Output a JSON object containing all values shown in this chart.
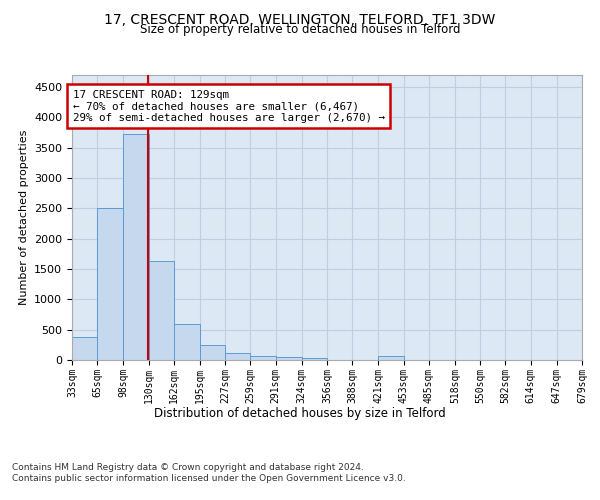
{
  "title": "17, CRESCENT ROAD, WELLINGTON, TELFORD, TF1 3DW",
  "subtitle": "Size of property relative to detached houses in Telford",
  "xlabel": "Distribution of detached houses by size in Telford",
  "ylabel": "Number of detached properties",
  "footer_line1": "Contains HM Land Registry data © Crown copyright and database right 2024.",
  "footer_line2": "Contains public sector information licensed under the Open Government Licence v3.0.",
  "annotation_line1": "17 CRESCENT ROAD: 129sqm",
  "annotation_line2": "← 70% of detached houses are smaller (6,467)",
  "annotation_line3": "29% of semi-detached houses are larger (2,670) →",
  "property_size_sqm": 129,
  "bar_color": "#c5d8ed",
  "bar_edge_color": "#5b9bd5",
  "marker_line_color": "#cc0000",
  "annotation_box_edge_color": "#cc0000",
  "annotation_box_face_color": "#ffffff",
  "background_color": "#ffffff",
  "plot_bg_color": "#dce9f5",
  "grid_color": "#c0cfe0",
  "bins": [
    33,
    65,
    98,
    130,
    162,
    195,
    227,
    259,
    291,
    324,
    356,
    388,
    421,
    453,
    485,
    518,
    550,
    582,
    614,
    647,
    679
  ],
  "counts": [
    380,
    2500,
    3730,
    1640,
    600,
    250,
    110,
    60,
    45,
    40,
    0,
    0,
    60,
    0,
    0,
    0,
    0,
    0,
    0,
    0
  ],
  "ylim": [
    0,
    4700
  ],
  "yticks": [
    0,
    500,
    1000,
    1500,
    2000,
    2500,
    3000,
    3500,
    4000,
    4500
  ]
}
